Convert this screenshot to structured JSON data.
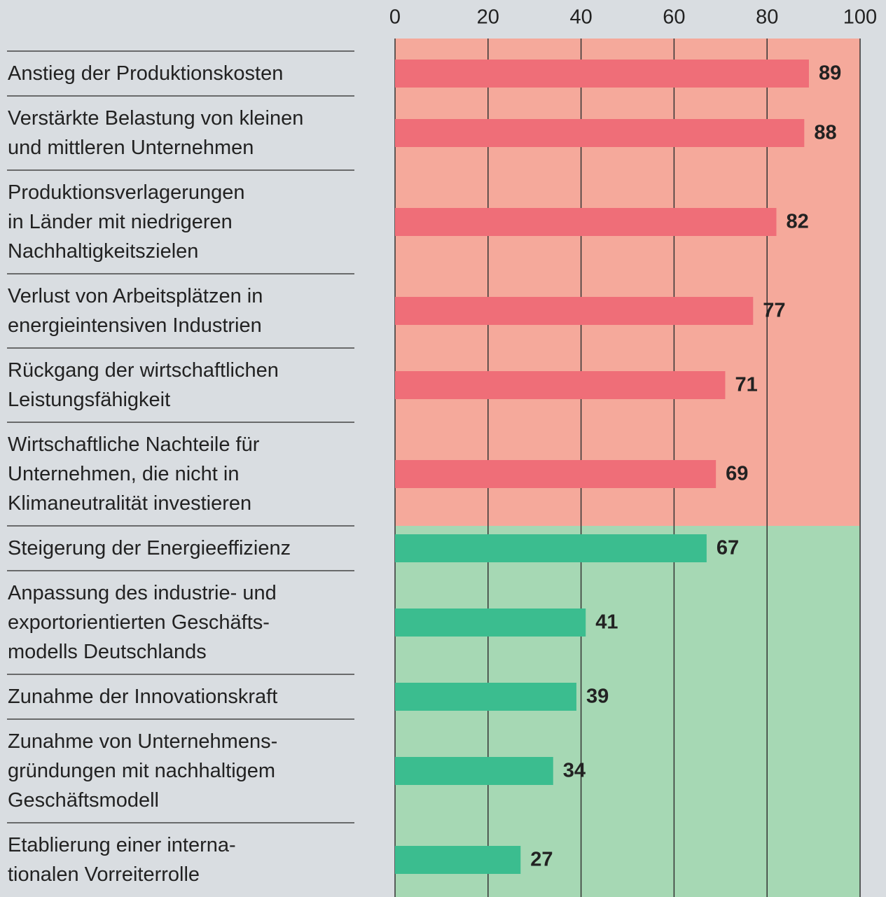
{
  "chart_data": {
    "type": "barh",
    "categories": [
      "Anstieg der Produktionskosten",
      "Verstärkte Belastung von kleinen\nund mittleren Unternehmen",
      "Produktionsverlagerungen\nin Länder mit niedrigeren\nNachhaltigkeitszielen",
      "Verlust von Arbeitsplätzen in\nenergieintensiven Industrien",
      "Rückgang der wirtschaftlichen\nLeistungsfähigkeit",
      "Wirtschaftliche Nachteile für\nUnternehmen, die nicht in\nKlimaneutralität investieren",
      "Steigerung der Energieeffizienz",
      "Anpassung des industrie- und\nexportorientierten Geschäfts-\nmodells Deutschlands",
      "Zunahme der Innovationskraft",
      "Zunahme von Unternehmens-\ngründungen mit nachhaltigem\nGeschäftsmodell",
      "Etablierung einer interna-\ntionalen Vorreiterrolle"
    ],
    "values": [
      89,
      88,
      82,
      77,
      71,
      69,
      67,
      41,
      39,
      34,
      27
    ],
    "colors": [
      "#ef6e78",
      "#ef6e78",
      "#ef6e78",
      "#ef6e78",
      "#ef6e78",
      "#ef6e78",
      "#3bbd8f",
      "#3bbd8f",
      "#3bbd8f",
      "#3bbd8f",
      "#3bbd8f"
    ],
    "background_colors": [
      "#f5a99b",
      "#f5a99b",
      "#f5a99b",
      "#f5a99b",
      "#f5a99b",
      "#f5a99b",
      "#a6d8b4",
      "#a6d8b4",
      "#a6d8b4",
      "#a6d8b4",
      "#a6d8b4"
    ],
    "xlim": [
      0,
      100
    ],
    "xticks": [
      0,
      20,
      40,
      60,
      80,
      100
    ],
    "grid": true
  }
}
